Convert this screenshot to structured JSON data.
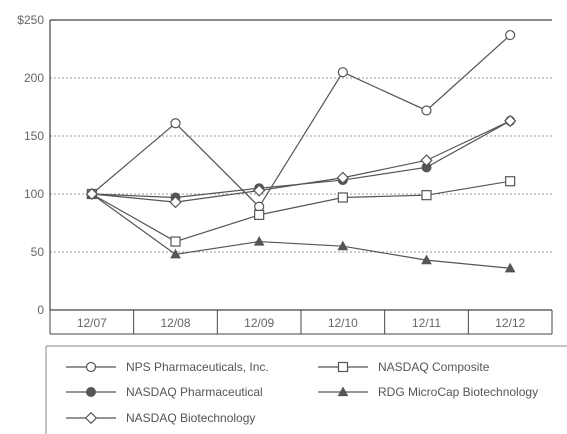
{
  "chart_data": {
    "type": "line",
    "title": "",
    "xlabel": "",
    "ylabel": "",
    "categories": [
      "12/07",
      "12/08",
      "12/09",
      "12/10",
      "12/11",
      "12/12"
    ],
    "ylim": [
      0,
      250
    ],
    "yticks": [
      0,
      50,
      100,
      150,
      200,
      250
    ],
    "ytick_labels": [
      "0",
      "50",
      "100",
      "150",
      "200",
      "$250"
    ],
    "grid": "horizontal-dotted",
    "legend_position": "bottom",
    "series": [
      {
        "name": "NPS Pharmaceuticals, Inc.",
        "marker": "circle-open",
        "color": "#555555",
        "values": [
          100,
          161,
          89,
          205,
          172,
          237
        ]
      },
      {
        "name": "NASDAQ Composite",
        "marker": "square-open",
        "color": "#555555",
        "values": [
          100,
          59,
          82,
          97,
          99,
          111
        ]
      },
      {
        "name": "NASDAQ Pharmaceutical",
        "marker": "circle-filled",
        "color": "#555555",
        "values": [
          100,
          97,
          105,
          112,
          123,
          163
        ]
      },
      {
        "name": "RDG MicroCap Biotechnology",
        "marker": "triangle-filled",
        "color": "#555555",
        "values": [
          100,
          48,
          59,
          55,
          43,
          36
        ]
      },
      {
        "name": "NASDAQ Biotechnology",
        "marker": "diamond-open",
        "color": "#555555",
        "values": [
          100,
          93,
          103,
          114,
          129,
          163
        ]
      }
    ]
  }
}
